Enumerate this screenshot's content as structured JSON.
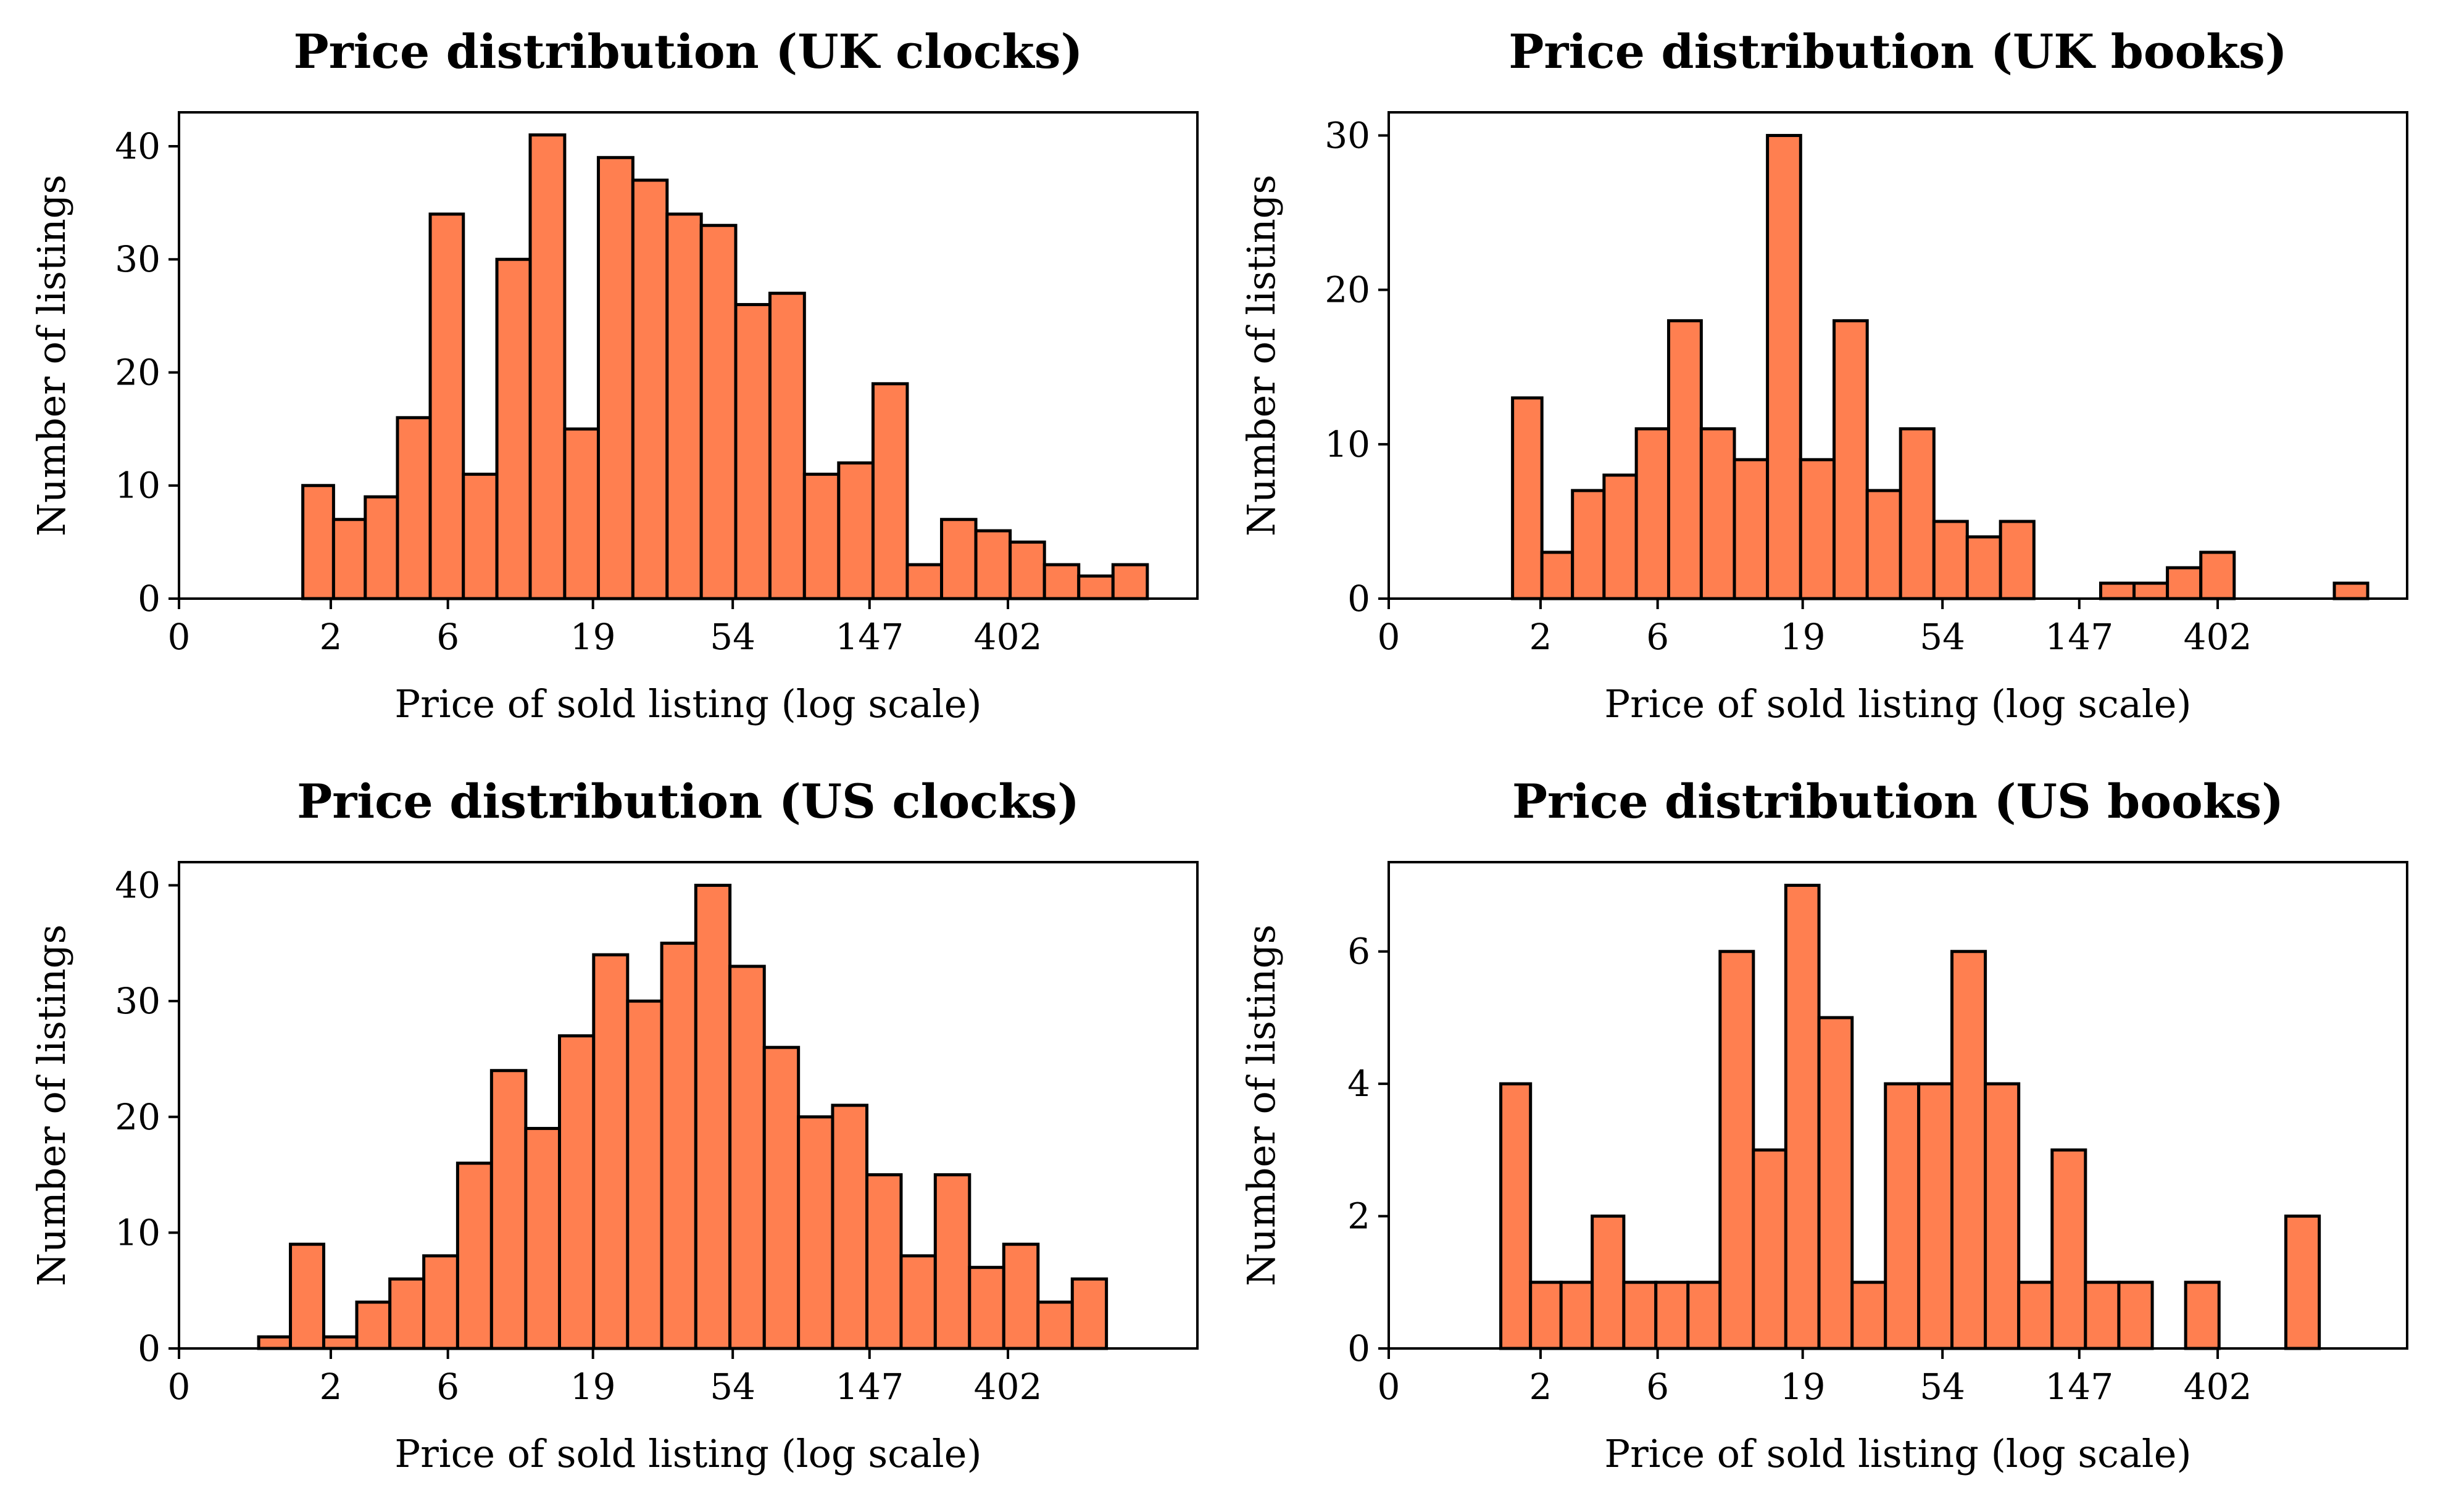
{
  "chart_data": [
    {
      "type": "bar",
      "title": "Price distribution (UK clocks)",
      "xlabel": "Price of sold listing (log scale)",
      "ylabel": "Number of listings",
      "x_scale": "log(1+price)",
      "x_ticks": [
        0,
        2,
        6,
        19,
        54,
        147,
        402
      ],
      "y_ticks": [
        0,
        10,
        20,
        30,
        40
      ],
      "ylim": [
        0,
        43
      ],
      "grid": false,
      "bar_color": "#ff7f50",
      "bins": [
        {
          "from": 1.45,
          "to": 2.06,
          "count": 10
        },
        {
          "from": 2.06,
          "to": 2.85,
          "count": 7
        },
        {
          "from": 2.85,
          "to": 3.86,
          "count": 9
        },
        {
          "from": 3.86,
          "to": 5.16,
          "count": 16
        },
        {
          "from": 5.16,
          "to": 6.83,
          "count": 34
        },
        {
          "from": 6.83,
          "to": 8.98,
          "count": 11
        },
        {
          "from": 8.98,
          "to": 11.7,
          "count": 30
        },
        {
          "from": 11.7,
          "to": 15.3,
          "count": 41
        },
        {
          "from": 15.3,
          "to": 19.8,
          "count": 15
        },
        {
          "from": 19.8,
          "to": 25.7,
          "count": 39
        },
        {
          "from": 25.7,
          "to": 33.2,
          "count": 37
        },
        {
          "from": 33.2,
          "to": 42.8,
          "count": 34
        },
        {
          "from": 42.8,
          "to": 55.2,
          "count": 33
        },
        {
          "from": 55.2,
          "to": 71.0,
          "count": 26
        },
        {
          "from": 71.0,
          "to": 91.4,
          "count": 27
        },
        {
          "from": 91.4,
          "to": 117.4,
          "count": 11
        },
        {
          "from": 117.4,
          "to": 150.8,
          "count": 12
        },
        {
          "from": 150.8,
          "to": 193.5,
          "count": 19
        },
        {
          "from": 193.5,
          "to": 248.3,
          "count": 3
        },
        {
          "from": 248.3,
          "to": 318.5,
          "count": 7
        },
        {
          "from": 318.5,
          "to": 408.5,
          "count": 6
        },
        {
          "from": 408.5,
          "to": 523.9,
          "count": 5
        },
        {
          "from": 523.9,
          "to": 671.7,
          "count": 3
        },
        {
          "from": 671.7,
          "to": 861.1,
          "count": 2
        },
        {
          "from": 861.1,
          "to": 1104,
          "count": 3
        }
      ]
    },
    {
      "type": "bar",
      "title": "Price distribution (UK books)",
      "xlabel": "Price of sold listing (log scale)",
      "ylabel": "Number of listings",
      "x_scale": "log(1+price)",
      "x_ticks": [
        0,
        2,
        6,
        19,
        54,
        147,
        402
      ],
      "y_ticks": [
        0,
        10,
        20,
        30
      ],
      "ylim": [
        0,
        31.5
      ],
      "grid": false,
      "bar_color": "#ff7f50",
      "bins": [
        {
          "from": 1.45,
          "to": 2.03,
          "count": 13
        },
        {
          "from": 2.03,
          "to": 2.78,
          "count": 3
        },
        {
          "from": 2.78,
          "to": 3.75,
          "count": 7
        },
        {
          "from": 3.75,
          "to": 5.0,
          "count": 8
        },
        {
          "from": 5.0,
          "to": 6.58,
          "count": 11
        },
        {
          "from": 6.58,
          "to": 8.6,
          "count": 18
        },
        {
          "from": 8.6,
          "to": 11.2,
          "count": 11
        },
        {
          "from": 11.2,
          "to": 14.5,
          "count": 9
        },
        {
          "from": 14.5,
          "to": 18.7,
          "count": 30
        },
        {
          "from": 18.7,
          "to": 24.1,
          "count": 9
        },
        {
          "from": 24.1,
          "to": 30.9,
          "count": 18
        },
        {
          "from": 30.9,
          "to": 39.6,
          "count": 7
        },
        {
          "from": 39.6,
          "to": 50.7,
          "count": 11
        },
        {
          "from": 50.7,
          "to": 64.8,
          "count": 5
        },
        {
          "from": 64.8,
          "to": 82.7,
          "count": 4
        },
        {
          "from": 82.7,
          "to": 105.6,
          "count": 5
        },
        {
          "from": 105.6,
          "to": 134.7,
          "count": 0
        },
        {
          "from": 134.7,
          "to": 171.8,
          "count": 0
        },
        {
          "from": 171.8,
          "to": 219.0,
          "count": 1
        },
        {
          "from": 219.0,
          "to": 279.1,
          "count": 1
        },
        {
          "from": 279.1,
          "to": 355.7,
          "count": 2
        },
        {
          "from": 355.7,
          "to": 453.1,
          "count": 3
        },
        {
          "from": 453.1,
          "to": 577.3,
          "count": 0
        },
        {
          "from": 577.3,
          "to": 735.3,
          "count": 0
        },
        {
          "from": 735.3,
          "to": 936.4,
          "count": 0
        },
        {
          "from": 936.4,
          "to": 1192.4,
          "count": 1
        }
      ]
    },
    {
      "type": "bar",
      "title": "Price distribution (US clocks)",
      "xlabel": "Price of sold listing (log scale)",
      "ylabel": "Number of listings",
      "x_scale": "log(1+price)",
      "x_ticks": [
        0,
        2,
        6,
        19,
        54,
        147,
        402
      ],
      "y_ticks": [
        0,
        10,
        20,
        30,
        40
      ],
      "ylim": [
        0,
        42
      ],
      "grid": false,
      "bar_color": "#ff7f50",
      "bins": [
        {
          "from": 0.78,
          "to": 1.24,
          "count": 1
        },
        {
          "from": 1.24,
          "to": 1.85,
          "count": 9
        },
        {
          "from": 1.85,
          "to": 2.62,
          "count": 1
        },
        {
          "from": 2.62,
          "to": 3.6,
          "count": 4
        },
        {
          "from": 3.6,
          "to": 4.88,
          "count": 6
        },
        {
          "from": 4.88,
          "to": 6.51,
          "count": 8
        },
        {
          "from": 6.51,
          "to": 8.6,
          "count": 16
        },
        {
          "from": 8.6,
          "to": 11.3,
          "count": 24
        },
        {
          "from": 11.3,
          "to": 14.7,
          "count": 19
        },
        {
          "from": 14.7,
          "to": 19.1,
          "count": 27
        },
        {
          "from": 19.1,
          "to": 24.7,
          "count": 34
        },
        {
          "from": 24.7,
          "to": 31.9,
          "count": 30
        },
        {
          "from": 31.9,
          "to": 41.1,
          "count": 35
        },
        {
          "from": 41.1,
          "to": 52.9,
          "count": 40
        },
        {
          "from": 52.9,
          "to": 68.1,
          "count": 33
        },
        {
          "from": 68.1,
          "to": 87.5,
          "count": 26
        },
        {
          "from": 87.5,
          "to": 112.3,
          "count": 20
        },
        {
          "from": 112.3,
          "to": 144.2,
          "count": 21
        },
        {
          "from": 144.2,
          "to": 185.0,
          "count": 15
        },
        {
          "from": 185.0,
          "to": 237.2,
          "count": 8
        },
        {
          "from": 237.2,
          "to": 304.2,
          "count": 15
        },
        {
          "from": 304.2,
          "to": 390.0,
          "count": 7
        },
        {
          "from": 390.0,
          "to": 500.0,
          "count": 9
        },
        {
          "from": 500.0,
          "to": 641.0,
          "count": 4
        },
        {
          "from": 641.0,
          "to": 821.0,
          "count": 6
        }
      ]
    },
    {
      "type": "bar",
      "title": "Price distribution (US books)",
      "xlabel": "Price of sold listing (log scale)",
      "ylabel": "Number of listings",
      "x_scale": "log(1+price)",
      "x_ticks": [
        0,
        2,
        6,
        19,
        54,
        147,
        402
      ],
      "y_ticks": [
        0,
        2,
        4,
        6
      ],
      "ylim": [
        0,
        7.35
      ],
      "grid": false,
      "bar_color": "#ff7f50",
      "bins": [
        {
          "from": 1.25,
          "to": 1.79,
          "count": 4
        },
        {
          "from": 1.79,
          "to": 2.48,
          "count": 1
        },
        {
          "from": 2.48,
          "to": 3.36,
          "count": 1
        },
        {
          "from": 3.36,
          "to": 4.48,
          "count": 2
        },
        {
          "from": 4.48,
          "to": 5.91,
          "count": 1
        },
        {
          "from": 5.91,
          "to": 7.72,
          "count": 1
        },
        {
          "from": 7.72,
          "to": 10.0,
          "count": 1
        },
        {
          "from": 10.0,
          "to": 13.0,
          "count": 6
        },
        {
          "from": 13.0,
          "to": 16.7,
          "count": 3
        },
        {
          "from": 16.7,
          "to": 21.5,
          "count": 7
        },
        {
          "from": 21.5,
          "to": 27.6,
          "count": 5
        },
        {
          "from": 27.6,
          "to": 35.4,
          "count": 1
        },
        {
          "from": 35.4,
          "to": 45.3,
          "count": 4
        },
        {
          "from": 45.3,
          "to": 57.9,
          "count": 4
        },
        {
          "from": 57.9,
          "to": 74.0,
          "count": 6
        },
        {
          "from": 74.0,
          "to": 94.5,
          "count": 4
        },
        {
          "from": 94.5,
          "to": 120.6,
          "count": 1
        },
        {
          "from": 120.6,
          "to": 153.8,
          "count": 3
        },
        {
          "from": 153.8,
          "to": 196.1,
          "count": 1
        },
        {
          "from": 196.1,
          "to": 250.0,
          "count": 1
        },
        {
          "from": 250.0,
          "to": 318.6,
          "count": 0
        },
        {
          "from": 318.6,
          "to": 406.0,
          "count": 1
        },
        {
          "from": 406.0,
          "to": 517.3,
          "count": 0
        },
        {
          "from": 517.3,
          "to": 659.0,
          "count": 0
        },
        {
          "from": 659.0,
          "to": 839.6,
          "count": 2
        }
      ]
    }
  ]
}
